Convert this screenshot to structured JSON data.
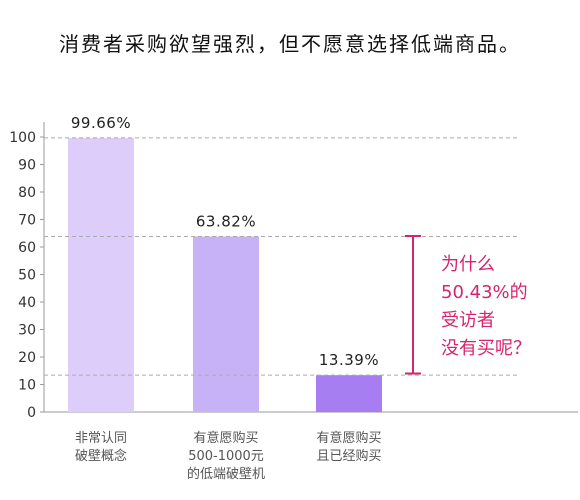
{
  "title": "消费者采购欲望强烈，但不愿意选择低端商品。",
  "chart_data": {
    "type": "bar",
    "title": "消费者采购欲望强烈，但不愿意选择低端商品。",
    "categories": [
      [
        "非常认同",
        "破壁概念"
      ],
      [
        "有意愿购买",
        "500-1000元",
        "的低端破壁机"
      ],
      [
        "有意愿购买",
        "且已经购买"
      ]
    ],
    "values": [
      99.66,
      63.82,
      13.39
    ],
    "value_labels": [
      "99.66%",
      "63.82%",
      "13.39%"
    ],
    "ylim": [
      0,
      105
    ],
    "yticks": [
      0,
      10,
      20,
      30,
      40,
      50,
      60,
      70,
      80,
      90,
      100
    ],
    "bar_colors": [
      "#dccdfa",
      "#c8b2f7",
      "#a77df2"
    ],
    "grid": false,
    "legend": "none",
    "annotation": {
      "lines": [
        "为什么",
        "50.43%的",
        "受访者",
        "没有买呢？"
      ],
      "color": "#d6246e",
      "span": [
        14,
        64
      ]
    }
  }
}
